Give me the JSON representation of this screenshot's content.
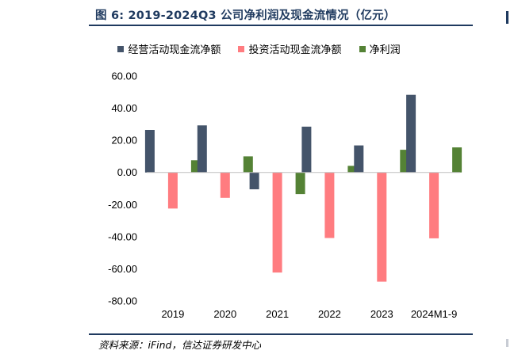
{
  "figure": {
    "title": "图 6:  2019-2024Q3 公司净利润及现金流情况（亿元）",
    "source": "资料来源：iFind，信达证券研发中心"
  },
  "chart_data": {
    "type": "bar",
    "categories": [
      "2019",
      "2020",
      "2021",
      "2022",
      "2023",
      "2024M1-9"
    ],
    "series": [
      {
        "name": "经营活动现金流净额",
        "color": "#44546a",
        "values": [
          26.5,
          29.3,
          -10.5,
          28.5,
          16.8,
          48.3
        ]
      },
      {
        "name": "投资活动现金流净额",
        "color": "#ff7c80",
        "values": [
          -22.5,
          -15.8,
          -62.3,
          -40.8,
          -68.0,
          -41.0
        ]
      },
      {
        "name": "净利润",
        "color": "#548235",
        "values": [
          7.6,
          10.0,
          -13.5,
          4.1,
          14.1,
          15.6
        ]
      }
    ],
    "ylim": [
      -80,
      60
    ],
    "yticks": [
      60,
      40,
      20,
      0,
      -20,
      -40,
      -60,
      -80
    ],
    "ytick_labels": [
      "60.00",
      "40.00",
      "20.00",
      "0.00",
      "-20.00",
      "-40.00",
      "-60.00",
      "-80.00"
    ],
    "legend_position": "top",
    "grid": false
  }
}
